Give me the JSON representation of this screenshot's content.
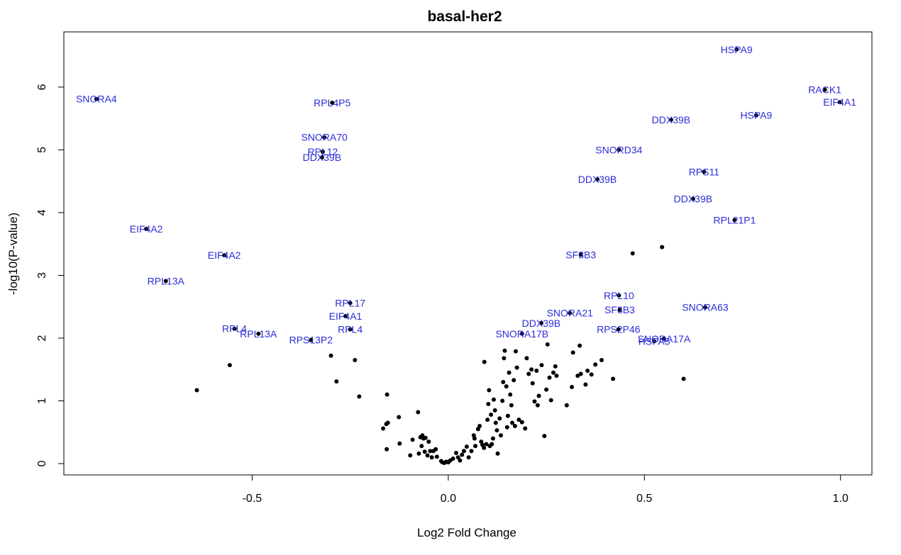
{
  "chart_data": {
    "type": "scatter",
    "title": "basal-her2",
    "xlabel": "Log2 Fold Change",
    "ylabel": "-log10(P-value)",
    "xlim": [
      -0.98,
      1.08
    ],
    "ylim": [
      -0.18,
      6.88
    ],
    "xticks": [
      -0.5,
      0.0,
      0.5,
      1.0
    ],
    "xtick_labels": [
      "-0.5",
      "0.0",
      "0.5",
      "1.0"
    ],
    "yticks": [
      0,
      1,
      2,
      3,
      4,
      5,
      6
    ],
    "ytick_labels": [
      "0",
      "1",
      "2",
      "3",
      "4",
      "5",
      "6"
    ],
    "grid": false,
    "legend": "none",
    "point_color": "#000000",
    "label_color": "#2b2bd9",
    "labeled_points": [
      {
        "label": "HSPA9",
        "x": 0.735,
        "y": 6.6
      },
      {
        "label": "RACK1",
        "x": 0.96,
        "y": 5.96
      },
      {
        "label": "EIF4A1",
        "x": 0.998,
        "y": 5.76
      },
      {
        "label": "HSPA9",
        "x": 0.785,
        "y": 5.55
      },
      {
        "label": "DDX39B",
        "x": 0.568,
        "y": 5.48
      },
      {
        "label": "SNORD34",
        "x": 0.435,
        "y": 5.0
      },
      {
        "label": "RPS11",
        "x": 0.652,
        "y": 4.65
      },
      {
        "label": "DDX39B",
        "x": 0.38,
        "y": 4.53
      },
      {
        "label": "DDX39B",
        "x": 0.624,
        "y": 4.22
      },
      {
        "label": "RPL21P1",
        "x": 0.73,
        "y": 3.88
      },
      {
        "label": "SF3B3",
        "x": 0.338,
        "y": 3.33
      },
      {
        "label": "RPL10",
        "x": 0.435,
        "y": 2.68
      },
      {
        "label": "SF3B3",
        "x": 0.437,
        "y": 2.45
      },
      {
        "label": "SNORA63",
        "x": 0.655,
        "y": 2.49
      },
      {
        "label": "SNORA21",
        "x": 0.31,
        "y": 2.4
      },
      {
        "label": "DDX39B",
        "x": 0.237,
        "y": 2.24
      },
      {
        "label": "SNORA17B",
        "x": 0.188,
        "y": 2.07
      },
      {
        "label": "RPS2P46",
        "x": 0.434,
        "y": 2.14
      },
      {
        "label": "SNORA17A",
        "x": 0.55,
        "y": 1.99
      },
      {
        "label": "HSPA5",
        "x": 0.525,
        "y": 1.95
      },
      {
        "label": "SNORA4",
        "x": -0.897,
        "y": 5.81
      },
      {
        "label": "RPL4P5",
        "x": -0.296,
        "y": 5.75
      },
      {
        "label": "SNORA70",
        "x": -0.316,
        "y": 5.2
      },
      {
        "label": "RPL12",
        "x": -0.32,
        "y": 4.97
      },
      {
        "label": "DDX39B",
        "x": -0.322,
        "y": 4.88
      },
      {
        "label": "EIF4A2",
        "x": -0.77,
        "y": 3.74
      },
      {
        "label": "EIF4A2",
        "x": -0.571,
        "y": 3.32
      },
      {
        "label": "RPL13A",
        "x": -0.72,
        "y": 2.91
      },
      {
        "label": "RPL17",
        "x": -0.25,
        "y": 2.56
      },
      {
        "label": "EIF4A1",
        "x": -0.262,
        "y": 2.35
      },
      {
        "label": "RPL4",
        "x": -0.25,
        "y": 2.14
      },
      {
        "label": "RPL4",
        "x": -0.545,
        "y": 2.15
      },
      {
        "label": "RPL13A",
        "x": -0.484,
        "y": 2.07
      },
      {
        "label": "RPS13P2",
        "x": -0.35,
        "y": 1.97
      }
    ],
    "points": [
      {
        "x": -0.641,
        "y": 1.17
      },
      {
        "x": -0.557,
        "y": 1.57
      },
      {
        "x": -0.299,
        "y": 1.72
      },
      {
        "x": -0.285,
        "y": 1.31
      },
      {
        "x": -0.238,
        "y": 1.65
      },
      {
        "x": -0.227,
        "y": 1.07
      },
      {
        "x": -0.166,
        "y": 0.56
      },
      {
        "x": -0.158,
        "y": 0.63
      },
      {
        "x": -0.157,
        "y": 0.23
      },
      {
        "x": -0.156,
        "y": 1.1
      },
      {
        "x": -0.154,
        "y": 0.65
      },
      {
        "x": -0.126,
        "y": 0.74
      },
      {
        "x": -0.124,
        "y": 0.32
      },
      {
        "x": -0.097,
        "y": 0.13
      },
      {
        "x": -0.091,
        "y": 0.38
      },
      {
        "x": -0.077,
        "y": 0.82
      },
      {
        "x": -0.075,
        "y": 0.16
      },
      {
        "x": -0.071,
        "y": 0.42
      },
      {
        "x": -0.068,
        "y": 0.28
      },
      {
        "x": -0.066,
        "y": 0.45
      },
      {
        "x": -0.063,
        "y": 0.4
      },
      {
        "x": -0.06,
        "y": 0.19
      },
      {
        "x": -0.058,
        "y": 0.41
      },
      {
        "x": -0.053,
        "y": 0.13
      },
      {
        "x": -0.05,
        "y": 0.35
      },
      {
        "x": -0.046,
        "y": 0.2
      },
      {
        "x": -0.042,
        "y": 0.1
      },
      {
        "x": -0.038,
        "y": 0.2
      },
      {
        "x": -0.032,
        "y": 0.23
      },
      {
        "x": -0.029,
        "y": 0.11
      },
      {
        "x": -0.018,
        "y": 0.04
      },
      {
        "x": -0.015,
        "y": 0.02
      },
      {
        "x": -0.01,
        "y": 0.01
      },
      {
        "x": -0.005,
        "y": 0.03
      },
      {
        "x": 0.0,
        "y": 0.02
      },
      {
        "x": 0.005,
        "y": 0.05
      },
      {
        "x": 0.012,
        "y": 0.08
      },
      {
        "x": 0.02,
        "y": 0.17
      },
      {
        "x": 0.025,
        "y": 0.1
      },
      {
        "x": 0.03,
        "y": 0.05
      },
      {
        "x": 0.035,
        "y": 0.14
      },
      {
        "x": 0.04,
        "y": 0.2
      },
      {
        "x": 0.047,
        "y": 0.27
      },
      {
        "x": 0.052,
        "y": 0.1
      },
      {
        "x": 0.059,
        "y": 0.2
      },
      {
        "x": 0.065,
        "y": 0.45
      },
      {
        "x": 0.067,
        "y": 0.4
      },
      {
        "x": 0.069,
        "y": 0.28
      },
      {
        "x": 0.076,
        "y": 0.55
      },
      {
        "x": 0.08,
        "y": 0.6
      },
      {
        "x": 0.084,
        "y": 0.35
      },
      {
        "x": 0.087,
        "y": 0.3
      },
      {
        "x": 0.091,
        "y": 0.25
      },
      {
        "x": 0.092,
        "y": 1.62
      },
      {
        "x": 0.097,
        "y": 0.31
      },
      {
        "x": 0.1,
        "y": 0.7
      },
      {
        "x": 0.102,
        "y": 0.95
      },
      {
        "x": 0.104,
        "y": 1.17
      },
      {
        "x": 0.106,
        "y": 0.28
      },
      {
        "x": 0.109,
        "y": 0.78
      },
      {
        "x": 0.111,
        "y": 0.31
      },
      {
        "x": 0.114,
        "y": 0.4
      },
      {
        "x": 0.116,
        "y": 1.02
      },
      {
        "x": 0.119,
        "y": 0.85
      },
      {
        "x": 0.121,
        "y": 0.65
      },
      {
        "x": 0.124,
        "y": 0.53
      },
      {
        "x": 0.126,
        "y": 0.16
      },
      {
        "x": 0.131,
        "y": 0.72
      },
      {
        "x": 0.134,
        "y": 0.45
      },
      {
        "x": 0.138,
        "y": 1.0
      },
      {
        "x": 0.14,
        "y": 1.3
      },
      {
        "x": 0.142,
        "y": 1.68
      },
      {
        "x": 0.144,
        "y": 1.8
      },
      {
        "x": 0.148,
        "y": 1.23
      },
      {
        "x": 0.15,
        "y": 0.58
      },
      {
        "x": 0.152,
        "y": 0.76
      },
      {
        "x": 0.155,
        "y": 1.45
      },
      {
        "x": 0.158,
        "y": 1.1
      },
      {
        "x": 0.161,
        "y": 0.93
      },
      {
        "x": 0.163,
        "y": 0.65
      },
      {
        "x": 0.167,
        "y": 1.33
      },
      {
        "x": 0.17,
        "y": 0.6
      },
      {
        "x": 0.172,
        "y": 1.79
      },
      {
        "x": 0.175,
        "y": 1.53
      },
      {
        "x": 0.18,
        "y": 0.7
      },
      {
        "x": 0.188,
        "y": 0.66
      },
      {
        "x": 0.196,
        "y": 0.56
      },
      {
        "x": 0.2,
        "y": 1.68
      },
      {
        "x": 0.205,
        "y": 1.43
      },
      {
        "x": 0.212,
        "y": 1.5
      },
      {
        "x": 0.215,
        "y": 1.28
      },
      {
        "x": 0.22,
        "y": 0.99
      },
      {
        "x": 0.225,
        "y": 1.48
      },
      {
        "x": 0.228,
        "y": 0.93
      },
      {
        "x": 0.231,
        "y": 1.08
      },
      {
        "x": 0.238,
        "y": 1.57
      },
      {
        "x": 0.245,
        "y": 0.44
      },
      {
        "x": 0.25,
        "y": 1.18
      },
      {
        "x": 0.253,
        "y": 1.9
      },
      {
        "x": 0.258,
        "y": 1.37
      },
      {
        "x": 0.262,
        "y": 1.01
      },
      {
        "x": 0.268,
        "y": 1.45
      },
      {
        "x": 0.273,
        "y": 1.55
      },
      {
        "x": 0.276,
        "y": 1.4
      },
      {
        "x": 0.302,
        "y": 0.93
      },
      {
        "x": 0.315,
        "y": 1.22
      },
      {
        "x": 0.318,
        "y": 1.77
      },
      {
        "x": 0.33,
        "y": 1.4
      },
      {
        "x": 0.335,
        "y": 1.88
      },
      {
        "x": 0.338,
        "y": 1.43
      },
      {
        "x": 0.35,
        "y": 1.26
      },
      {
        "x": 0.355,
        "y": 1.48
      },
      {
        "x": 0.365,
        "y": 1.42
      },
      {
        "x": 0.375,
        "y": 1.58
      },
      {
        "x": 0.391,
        "y": 1.65
      },
      {
        "x": 0.42,
        "y": 1.35
      },
      {
        "x": 0.47,
        "y": 3.35
      },
      {
        "x": 0.545,
        "y": 3.45
      },
      {
        "x": 0.6,
        "y": 1.35
      }
    ]
  }
}
